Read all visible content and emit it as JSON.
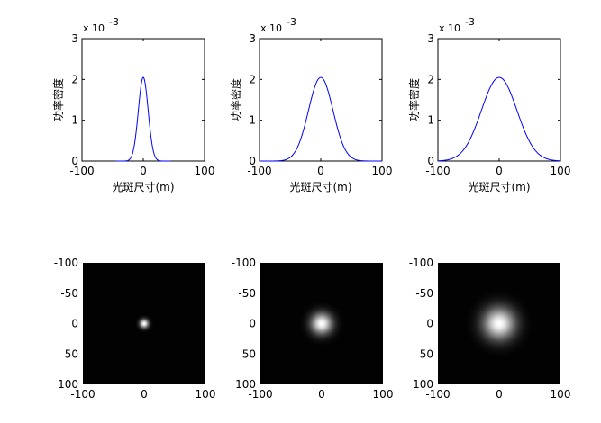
{
  "chart_data": [
    {
      "type": "line",
      "xlabel": "光斑尺寸(m)",
      "ylabel": "功率密度",
      "y_exponent_label": "x 10",
      "y_exponent": "-3",
      "xlim": [
        -100,
        100
      ],
      "ylim": [
        0,
        3
      ],
      "xticks": [
        "-100",
        "0",
        "100"
      ],
      "yticks": [
        "0",
        "1",
        "2",
        "3"
      ],
      "series_color": "#0000ff",
      "peak": 2.05,
      "sigma": 8,
      "x_range": [
        -45,
        45
      ]
    },
    {
      "type": "line",
      "xlabel": "光斑尺寸(m)",
      "ylabel": "功率密度",
      "y_exponent_label": "x 10",
      "y_exponent": "-3",
      "xlim": [
        -100,
        100
      ],
      "ylim": [
        0,
        3
      ],
      "xticks": [
        "-100",
        "0",
        "100"
      ],
      "yticks": [
        "0",
        "1",
        "2",
        "3"
      ],
      "series_color": "#0000ff",
      "peak": 2.05,
      "sigma": 20,
      "x_range": [
        -100,
        100
      ]
    },
    {
      "type": "line",
      "xlabel": "光斑尺寸(m)",
      "ylabel": "功率密度",
      "y_exponent_label": "x 10",
      "y_exponent": "-3",
      "xlim": [
        -100,
        100
      ],
      "ylim": [
        0,
        3
      ],
      "xticks": [
        "-100",
        "0",
        "100"
      ],
      "yticks": [
        "0",
        "1",
        "2",
        "3"
      ],
      "series_color": "#0000ff",
      "peak": 2.05,
      "sigma": 29,
      "x_range": [
        -100,
        100
      ]
    },
    {
      "type": "heatmap",
      "xlim": [
        -100,
        100
      ],
      "ylim": [
        -100,
        100
      ],
      "xticks": [
        "-100",
        "0",
        "100"
      ],
      "yticks": [
        "-100",
        "-50",
        "0",
        "50",
        "100"
      ],
      "colormap": "gray",
      "sigma": 5
    },
    {
      "type": "heatmap",
      "xlim": [
        -100,
        100
      ],
      "ylim": [
        -100,
        100
      ],
      "xticks": [
        "-100",
        "0",
        "100"
      ],
      "yticks": [
        "-100",
        "-50",
        "0",
        "50",
        "100"
      ],
      "colormap": "gray",
      "sigma": 12
    },
    {
      "type": "heatmap",
      "xlim": [
        -100,
        100
      ],
      "ylim": [
        -100,
        100
      ],
      "xticks": [
        "-100",
        "0",
        "100"
      ],
      "yticks": [
        "-100",
        "-50",
        "0",
        "50",
        "100"
      ],
      "colormap": "gray",
      "sigma": 18
    }
  ]
}
